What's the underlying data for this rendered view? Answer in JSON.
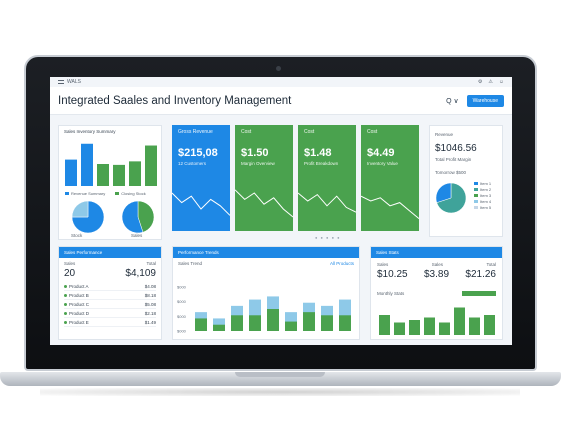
{
  "app": {
    "name": "WALS",
    "title": "Integrated Saales and Inventory Management"
  },
  "header": {
    "search_label": "Q ∨",
    "action_button": "Warehouse",
    "icons": [
      "settings-icon",
      "alert-icon",
      "user-icon"
    ]
  },
  "left_top_card": {
    "title": "Sales Inventory Summary",
    "legend": [
      "Revenue Summary",
      "Closing Stock",
      "Stock",
      "Sales"
    ]
  },
  "kpis": [
    {
      "label": "Gross Revenue",
      "value": "$215,08",
      "sub": "12 Customers"
    },
    {
      "label": "Cost",
      "value": "$1.50",
      "sub": "Margin Overview"
    },
    {
      "label": "Cost",
      "value": "$1.48",
      "sub": "Profit Breakdown"
    },
    {
      "label": "Cost",
      "value": "$4.49",
      "sub": "Inventory Value"
    }
  ],
  "right_top_card": {
    "title": "Revenue",
    "value": "$1046.56",
    "sub": "Total Profit Margin",
    "sub_title": "Tomorrow $500",
    "legend": [
      "Item 1",
      "Item 2",
      "Item 3",
      "Item 4",
      "Item 5"
    ]
  },
  "bottom_left": {
    "title": "Sales Performance",
    "col1_label": "Sales",
    "col2_label": "Total",
    "count": "20",
    "amount": "$4,109",
    "rows": [
      {
        "label": "Product A",
        "value": "$4.08"
      },
      {
        "label": "Product B",
        "value": "$8.18"
      },
      {
        "label": "Product C",
        "value": "$5.08"
      },
      {
        "label": "Product D",
        "value": "$2.18"
      },
      {
        "label": "Product E",
        "value": "$1.49"
      }
    ]
  },
  "bottom_mid": {
    "title": "Performance Trends",
    "subtitle": "Sales Trend",
    "link": "All Products",
    "y_ticks": [
      "$000",
      "$000",
      "$000",
      "$000"
    ]
  },
  "bottom_right": {
    "title": "Sales Stats",
    "metrics": [
      {
        "label": "Sales",
        "value": "$10.25"
      },
      {
        "label": "Sales",
        "value": "$3.89"
      },
      {
        "label": "Total",
        "value": "$21.26"
      }
    ],
    "chart_title": "Monthly Stats"
  },
  "chart_data": [
    {
      "type": "bar",
      "title": "Sales Inventory Summary",
      "categories": [
        "1",
        "2",
        "3",
        "4",
        "5",
        "6"
      ],
      "values": [
        30,
        48,
        25,
        24,
        28,
        46
      ],
      "ylim": [
        0,
        50
      ]
    },
    {
      "type": "pie",
      "values": [
        75,
        25
      ],
      "labels": [
        "Revenue Summary",
        "Closing Stock"
      ]
    },
    {
      "type": "pie",
      "values": [
        45,
        55
      ],
      "labels": [
        "Stock",
        "Sales"
      ]
    },
    {
      "type": "line",
      "x": [
        0,
        1,
        2,
        3,
        4,
        5,
        6
      ],
      "y": [
        20,
        14,
        18,
        10,
        16,
        12,
        6
      ],
      "ylim": [
        0,
        25
      ]
    },
    {
      "type": "line",
      "x": [
        0,
        1,
        2,
        3,
        4,
        5,
        6
      ],
      "y": [
        22,
        16,
        20,
        13,
        17,
        10,
        5
      ],
      "ylim": [
        0,
        25
      ]
    },
    {
      "type": "line",
      "x": [
        0,
        1,
        2,
        3,
        4,
        5,
        6
      ],
      "y": [
        20,
        15,
        19,
        12,
        18,
        11,
        8
      ],
      "ylim": [
        0,
        25
      ]
    },
    {
      "type": "line",
      "x": [
        0,
        1,
        2,
        3,
        4,
        5,
        6
      ],
      "y": [
        18,
        15,
        17,
        12,
        14,
        9,
        4
      ],
      "ylim": [
        0,
        25
      ]
    },
    {
      "type": "pie",
      "values": [
        70,
        30
      ],
      "labels": [
        "A",
        "B"
      ]
    },
    {
      "type": "bar",
      "title": "Performance Trends",
      "categories": [
        "1",
        "2",
        "3",
        "4",
        "5",
        "6",
        "7",
        "8",
        "9"
      ],
      "series": [
        {
          "values": [
            6,
            4,
            8,
            10,
            11,
            6,
            9,
            8,
            10
          ]
        },
        {
          "values": [
            4,
            2,
            5,
            5,
            7,
            3,
            6,
            5,
            5
          ]
        }
      ],
      "ylim": [
        0,
        14
      ]
    },
    {
      "type": "bar",
      "title": "Monthly Stats",
      "categories": [
        "1",
        "2",
        "3",
        "4",
        "5",
        "6",
        "7",
        "8"
      ],
      "values": [
        8,
        5,
        6,
        7,
        5,
        11,
        7,
        8
      ],
      "ylim": [
        0,
        12
      ]
    }
  ],
  "colors": {
    "blue": "#1e88e5",
    "green": "#4aa24e",
    "lightblue": "#8ec9e8",
    "teal": "#3fa39a"
  }
}
